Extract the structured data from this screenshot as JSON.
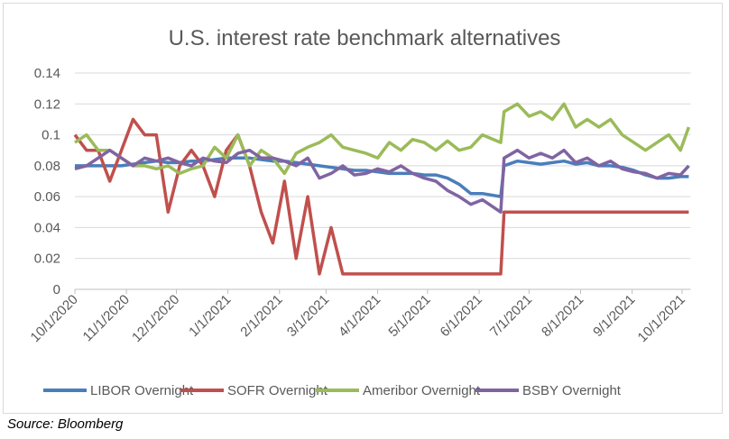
{
  "chart_data": {
    "type": "line",
    "title": "U.S. interest rate benchmark alternatives",
    "xlabel": "",
    "ylabel": "",
    "ylim": [
      0,
      0.14
    ],
    "y_ticks": [
      "0",
      "0.02",
      "0.04",
      "0.06",
      "0.08",
      "0.1",
      "0.12",
      "0.14"
    ],
    "x_ticks": [
      "10/1/2020",
      "11/1/2020",
      "12/1/2020",
      "1/1/2021",
      "2/1/2021",
      "3/1/2021",
      "4/1/2021",
      "5/1/2021",
      "6/1/2021",
      "7/1/2021",
      "8/1/2021",
      "9/1/2021",
      "10/1/2021"
    ],
    "x_tick_dates": [
      "2020-10-01",
      "2020-11-01",
      "2020-12-01",
      "2021-01-01",
      "2021-02-01",
      "2021-03-01",
      "2021-04-01",
      "2021-05-01",
      "2021-06-01",
      "2021-07-01",
      "2021-08-01",
      "2021-09-01",
      "2021-10-01"
    ],
    "xlim": [
      "2020-10-01",
      "2021-10-05"
    ],
    "grid": "horizontal",
    "legend": "bottom",
    "x": [
      "2020-10-01",
      "2020-10-08",
      "2020-10-15",
      "2020-10-22",
      "2020-10-29",
      "2020-11-05",
      "2020-11-12",
      "2020-11-19",
      "2020-11-26",
      "2020-12-03",
      "2020-12-10",
      "2020-12-17",
      "2020-12-24",
      "2020-12-31",
      "2021-01-07",
      "2021-01-14",
      "2021-01-21",
      "2021-01-28",
      "2021-02-04",
      "2021-02-11",
      "2021-02-18",
      "2021-02-25",
      "2021-03-04",
      "2021-03-11",
      "2021-03-18",
      "2021-03-25",
      "2021-04-01",
      "2021-04-08",
      "2021-04-15",
      "2021-04-22",
      "2021-04-29",
      "2021-05-06",
      "2021-05-13",
      "2021-05-20",
      "2021-05-27",
      "2021-06-03",
      "2021-06-14",
      "2021-06-16",
      "2021-06-24",
      "2021-07-01",
      "2021-07-08",
      "2021-07-15",
      "2021-07-22",
      "2021-07-29",
      "2021-08-05",
      "2021-08-12",
      "2021-08-19",
      "2021-08-26",
      "2021-09-02",
      "2021-09-09",
      "2021-09-16",
      "2021-09-23",
      "2021-09-30",
      "2021-10-05"
    ],
    "series": [
      {
        "name": "LIBOR Overnight",
        "color": "#4a7ebb",
        "values": [
          0.08,
          0.08,
          0.08,
          0.08,
          0.08,
          0.081,
          0.082,
          0.083,
          0.082,
          0.082,
          0.083,
          0.083,
          0.084,
          0.085,
          0.085,
          0.085,
          0.084,
          0.083,
          0.083,
          0.082,
          0.081,
          0.08,
          0.079,
          0.078,
          0.077,
          0.077,
          0.076,
          0.075,
          0.075,
          0.075,
          0.074,
          0.074,
          0.072,
          0.068,
          0.062,
          0.062,
          0.06,
          0.08,
          0.083,
          0.082,
          0.081,
          0.082,
          0.083,
          0.081,
          0.082,
          0.08,
          0.08,
          0.079,
          0.077,
          0.074,
          0.072,
          0.072,
          0.073,
          0.073
        ]
      },
      {
        "name": "SOFR Overnight",
        "color": "#c0504d",
        "values": [
          0.1,
          0.09,
          0.09,
          0.07,
          0.09,
          0.11,
          0.1,
          0.1,
          0.05,
          0.08,
          0.09,
          0.08,
          0.06,
          0.09,
          0.1,
          0.08,
          0.05,
          0.03,
          0.07,
          0.02,
          0.06,
          0.01,
          0.04,
          0.01,
          0.01,
          0.01,
          0.01,
          0.01,
          0.01,
          0.01,
          0.01,
          0.01,
          0.01,
          0.01,
          0.01,
          0.01,
          0.01,
          0.05,
          0.05,
          0.05,
          0.05,
          0.05,
          0.05,
          0.05,
          0.05,
          0.05,
          0.05,
          0.05,
          0.05,
          0.05,
          0.05,
          0.05,
          0.05,
          0.05
        ]
      },
      {
        "name": "Ameribor Overnight",
        "color": "#9bbb59",
        "values": [
          0.095,
          0.1,
          0.09,
          0.09,
          0.085,
          0.08,
          0.08,
          0.078,
          0.08,
          0.075,
          0.078,
          0.08,
          0.092,
          0.085,
          0.1,
          0.08,
          0.09,
          0.085,
          0.075,
          0.088,
          0.092,
          0.095,
          0.1,
          0.092,
          0.09,
          0.088,
          0.085,
          0.095,
          0.09,
          0.097,
          0.095,
          0.09,
          0.096,
          0.09,
          0.092,
          0.1,
          0.095,
          0.115,
          0.12,
          0.112,
          0.115,
          0.11,
          0.12,
          0.105,
          0.11,
          0.105,
          0.11,
          0.1,
          0.095,
          0.09,
          0.095,
          0.1,
          0.09,
          0.105
        ]
      },
      {
        "name": "BSBY Overnight",
        "color": "#8064a2",
        "values": [
          0.078,
          0.08,
          0.085,
          0.09,
          0.085,
          0.08,
          0.085,
          0.083,
          0.085,
          0.082,
          0.08,
          0.085,
          0.083,
          0.082,
          0.088,
          0.09,
          0.085,
          0.085,
          0.083,
          0.08,
          0.085,
          0.072,
          0.075,
          0.08,
          0.074,
          0.075,
          0.078,
          0.076,
          0.08,
          0.075,
          0.072,
          0.07,
          0.064,
          0.06,
          0.055,
          0.058,
          0.05,
          0.085,
          0.09,
          0.085,
          0.088,
          0.085,
          0.09,
          0.082,
          0.085,
          0.08,
          0.083,
          0.078,
          0.076,
          0.075,
          0.072,
          0.075,
          0.074,
          0.08
        ]
      }
    ]
  },
  "source": "Source: Bloomberg"
}
